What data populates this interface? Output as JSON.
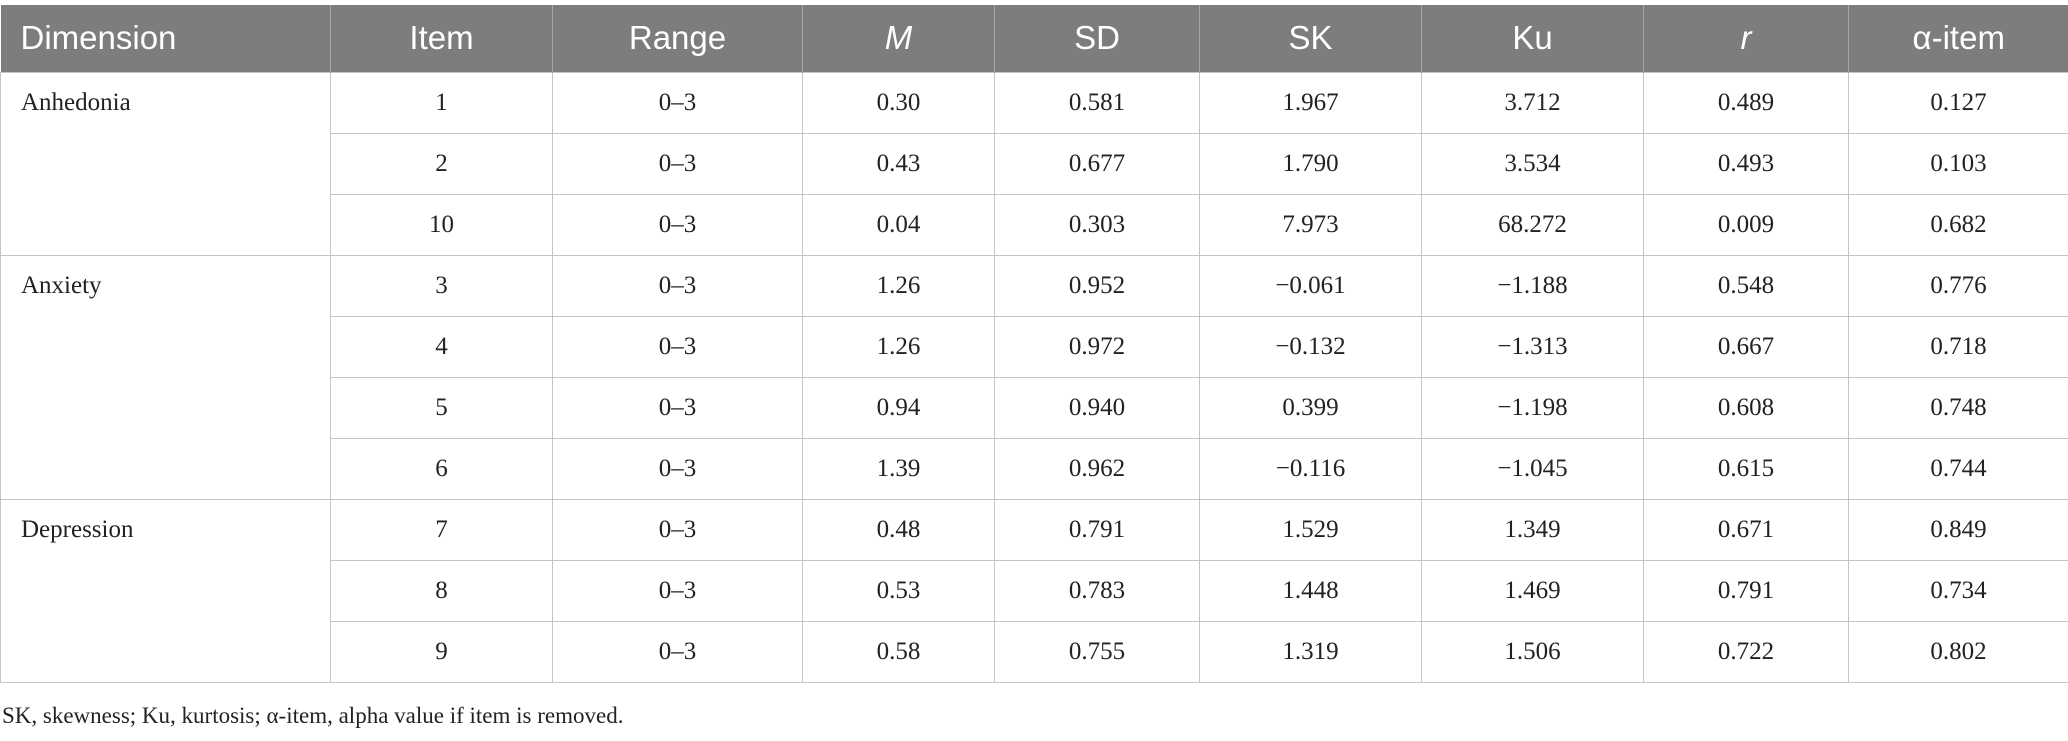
{
  "table": {
    "headers": [
      "Dimension",
      "Item",
      "Range",
      "M",
      "SD",
      "SK",
      "Ku",
      "r",
      "α-item"
    ],
    "groups": [
      {
        "dimension": "Anhedonia",
        "rows": [
          [
            "1",
            "0–3",
            "0.30",
            "0.581",
            "1.967",
            "3.712",
            "0.489",
            "0.127"
          ],
          [
            "2",
            "0–3",
            "0.43",
            "0.677",
            "1.790",
            "3.534",
            "0.493",
            "0.103"
          ],
          [
            "10",
            "0–3",
            "0.04",
            "0.303",
            "7.973",
            "68.272",
            "0.009",
            "0.682"
          ]
        ]
      },
      {
        "dimension": "Anxiety",
        "rows": [
          [
            "3",
            "0–3",
            "1.26",
            "0.952",
            "−0.061",
            "−1.188",
            "0.548",
            "0.776"
          ],
          [
            "4",
            "0–3",
            "1.26",
            "0.972",
            "−0.132",
            "−1.313",
            "0.667",
            "0.718"
          ],
          [
            "5",
            "0–3",
            "0.94",
            "0.940",
            "0.399",
            "−1.198",
            "0.608",
            "0.748"
          ],
          [
            "6",
            "0–3",
            "1.39",
            "0.962",
            "−0.116",
            "−1.045",
            "0.615",
            "0.744"
          ]
        ]
      },
      {
        "dimension": "Depression",
        "rows": [
          [
            "7",
            "0–3",
            "0.48",
            "0.791",
            "1.529",
            "1.349",
            "0.671",
            "0.849"
          ],
          [
            "8",
            "0–3",
            "0.53",
            "0.783",
            "1.448",
            "1.469",
            "0.791",
            "0.734"
          ],
          [
            "9",
            "0–3",
            "0.58",
            "0.755",
            "1.319",
            "1.506",
            "0.722",
            "0.802"
          ]
        ]
      }
    ]
  },
  "footnote": "SK, skewness; Ku, kurtosis; α-item, alpha value if item is removed."
}
